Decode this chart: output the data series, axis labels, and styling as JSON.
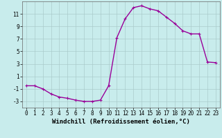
{
  "x": [
    0,
    1,
    2,
    3,
    4,
    5,
    6,
    7,
    8,
    9,
    10,
    11,
    12,
    13,
    14,
    15,
    16,
    17,
    18,
    19,
    20,
    21,
    22,
    23
  ],
  "y": [
    -0.5,
    -0.5,
    -1.0,
    -1.8,
    -2.3,
    -2.5,
    -2.8,
    -3.0,
    -3.0,
    -2.8,
    -0.5,
    7.2,
    10.2,
    12.0,
    12.3,
    11.8,
    11.5,
    10.5,
    9.5,
    8.3,
    7.8,
    7.8,
    3.3,
    3.2
  ],
  "line_color": "#990099",
  "marker": "+",
  "marker_size": 3,
  "background_color": "#c8ecec",
  "grid_color": "#aacccc",
  "xlabel": "Windchill (Refroidissement éolien,°C)",
  "xlim": [
    -0.5,
    23.5
  ],
  "ylim": [
    -4,
    13
  ],
  "xticks": [
    0,
    1,
    2,
    3,
    4,
    5,
    6,
    7,
    8,
    9,
    10,
    11,
    12,
    13,
    14,
    15,
    16,
    17,
    18,
    19,
    20,
    21,
    22,
    23
  ],
  "yticks": [
    -3,
    -1,
    1,
    3,
    5,
    7,
    9,
    11
  ],
  "xlabel_fontsize": 6.5,
  "tick_fontsize": 5.5,
  "line_width": 1.0
}
